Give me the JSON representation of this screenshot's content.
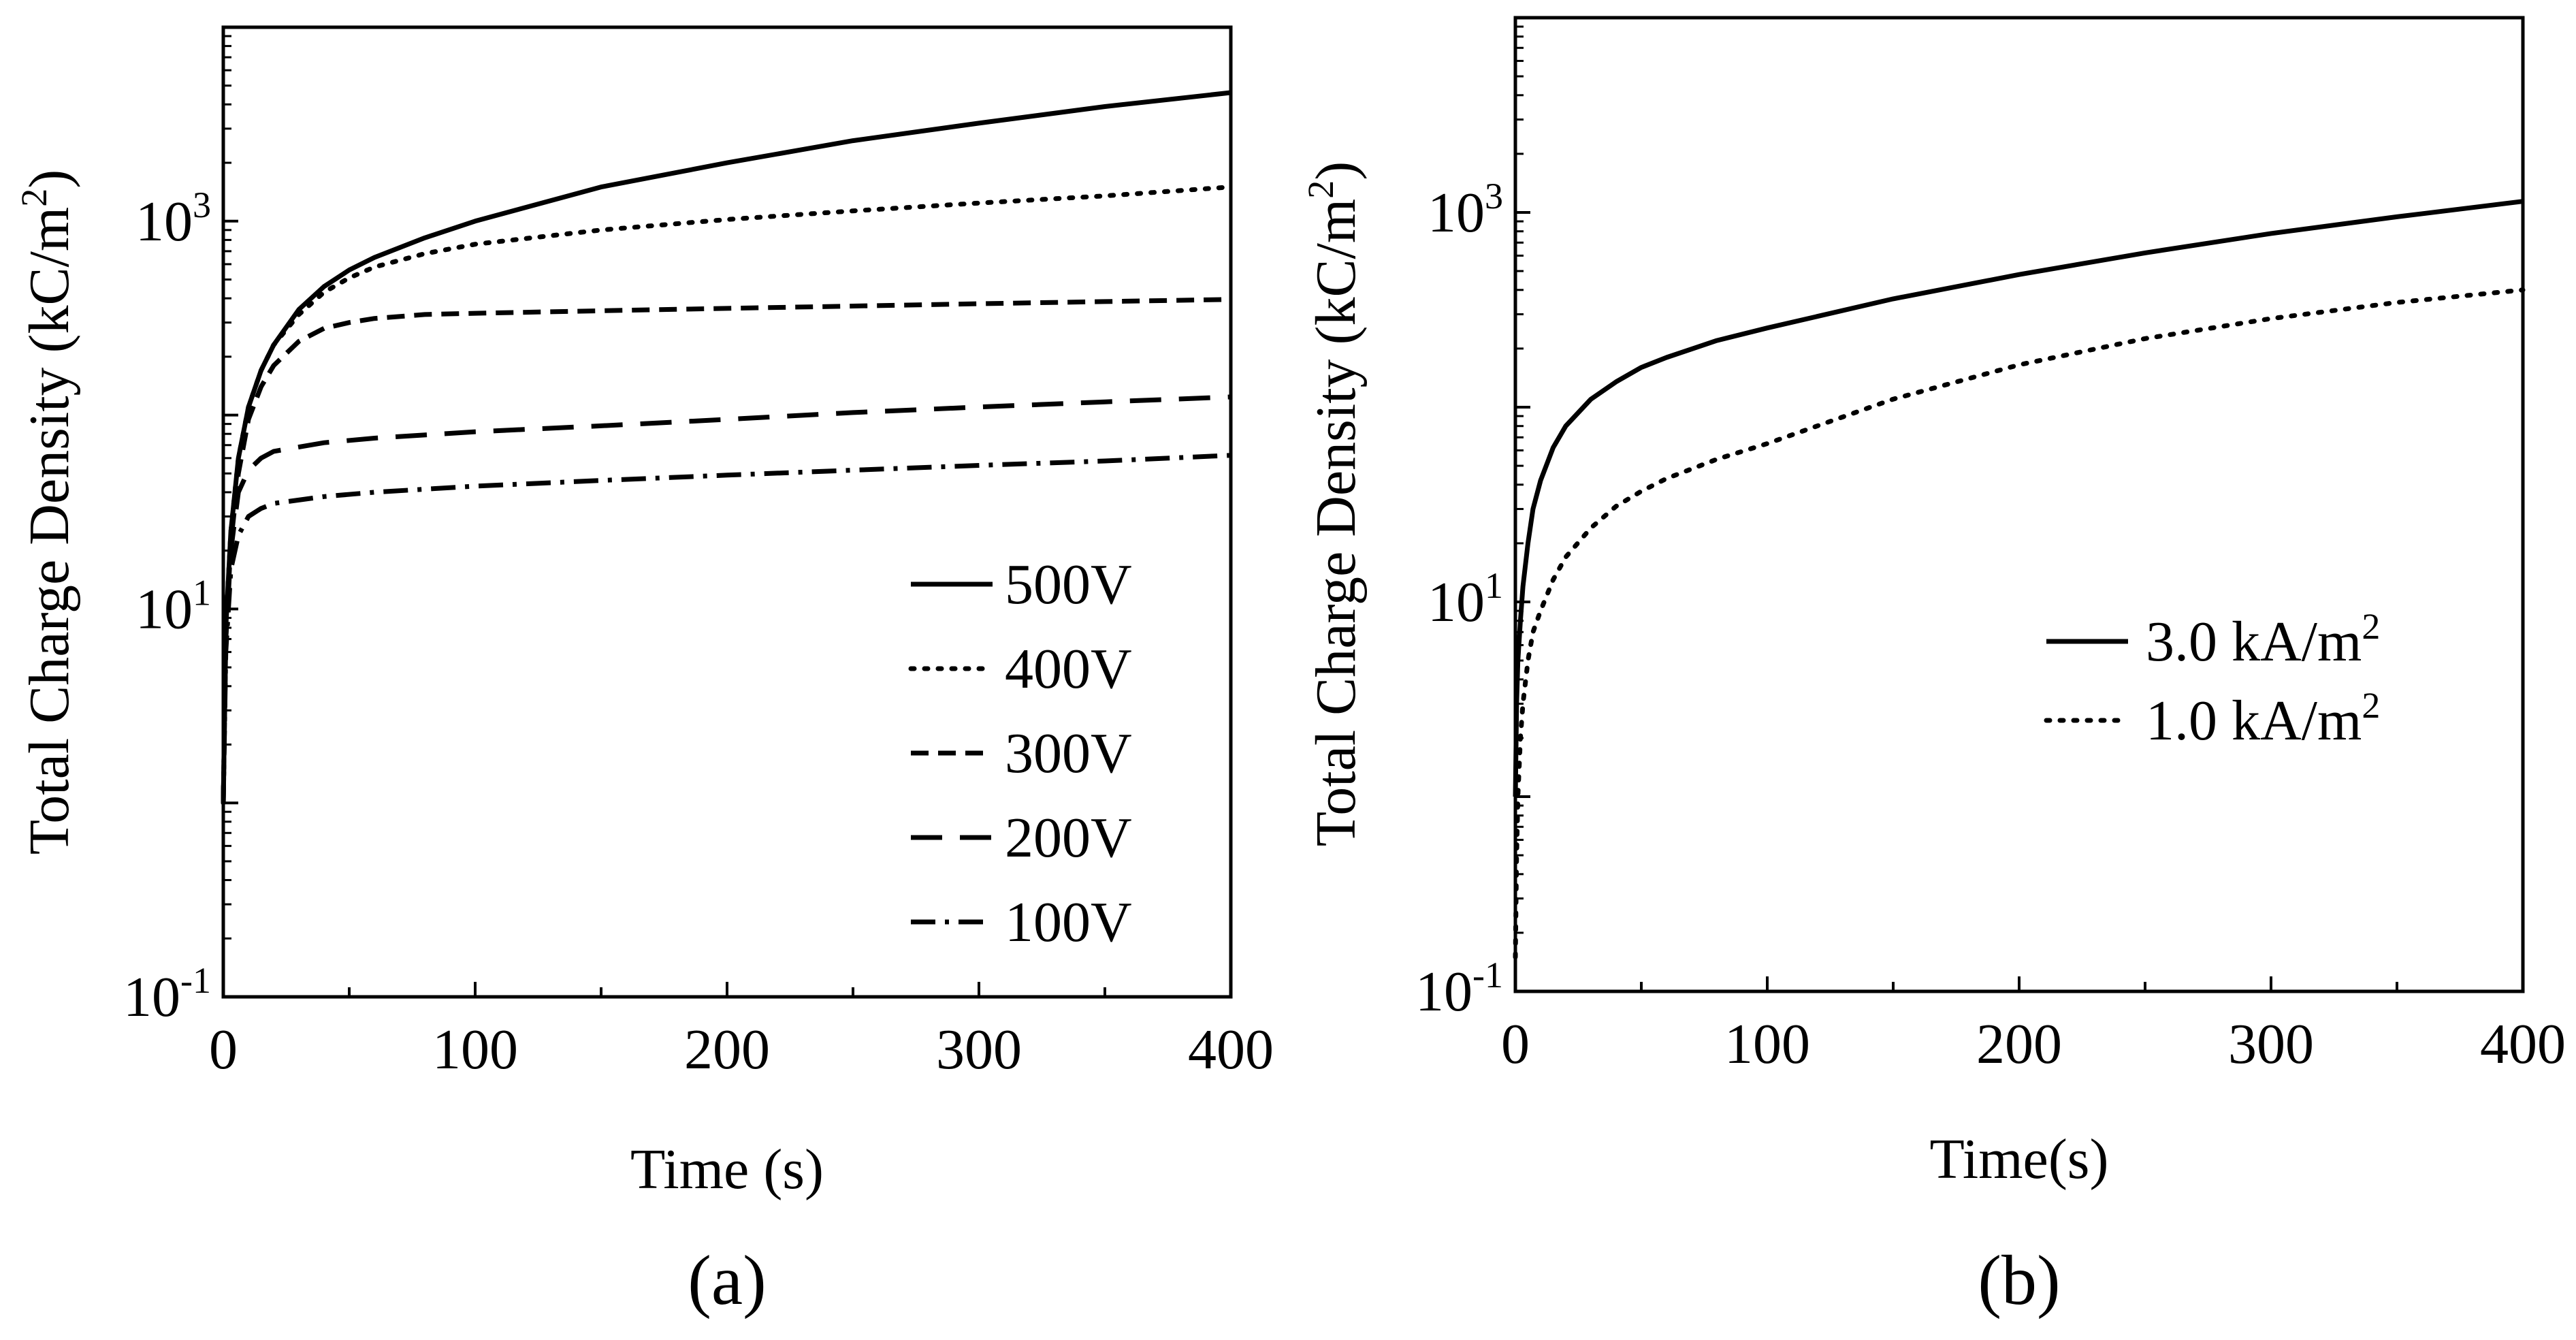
{
  "chart_data": [
    {
      "type": "line",
      "panel_label": "(a)",
      "xlabel": "Time (s)",
      "ylabel": "Total Charge Density (kC/m²)",
      "ylabel_parts": {
        "pre": "Total Charge Density (kC/m",
        "sup": "2",
        "post": ")"
      },
      "xlim": [
        0,
        400
      ],
      "xticks": [
        "0",
        "100",
        "200",
        "300",
        "400"
      ],
      "yscale": "log",
      "ylim": [
        0.1,
        10000
      ],
      "yticks": [
        {
          "base": "10",
          "exp": "-1"
        },
        {
          "base": "10",
          "exp": "1"
        },
        {
          "base": "10",
          "exp": "3"
        }
      ],
      "legend_position": "lower-right",
      "series": [
        {
          "name": "500V",
          "dash": "solid",
          "x": [
            0,
            1,
            3,
            6,
            10,
            15,
            20,
            30,
            40,
            50,
            60,
            80,
            100,
            150,
            200,
            250,
            300,
            350,
            400
          ],
          "y": [
            1,
            8,
            25,
            60,
            110,
            170,
            230,
            350,
            460,
            560,
            650,
            820,
            1000,
            1500,
            2000,
            2600,
            3200,
            3900,
            4600
          ]
        },
        {
          "name": "400V",
          "dash": "dot",
          "x": [
            0,
            1,
            3,
            6,
            10,
            15,
            20,
            30,
            40,
            50,
            60,
            80,
            100,
            150,
            200,
            250,
            300,
            350,
            400
          ],
          "y": [
            1,
            8,
            25,
            60,
            110,
            170,
            230,
            330,
            430,
            510,
            580,
            680,
            760,
            900,
            1020,
            1130,
            1240,
            1350,
            1500
          ]
        },
        {
          "name": "300V",
          "dash": "short-dash",
          "x": [
            0,
            1,
            3,
            6,
            10,
            15,
            20,
            30,
            40,
            50,
            60,
            80,
            100,
            150,
            200,
            250,
            300,
            350,
            400
          ],
          "y": [
            1,
            7,
            22,
            50,
            95,
            140,
            180,
            240,
            280,
            300,
            315,
            330,
            335,
            345,
            355,
            365,
            375,
            385,
            395
          ]
        },
        {
          "name": "200V",
          "dash": "long-dash",
          "x": [
            0,
            1,
            3,
            6,
            10,
            15,
            20,
            40,
            60,
            100,
            150,
            200,
            250,
            300,
            350,
            400
          ],
          "y": [
            1,
            7,
            20,
            40,
            52,
            60,
            65,
            72,
            76,
            82,
            88,
            95,
            103,
            110,
            117,
            124
          ]
        },
        {
          "name": "100V",
          "dash": "dash-dot",
          "x": [
            0,
            1,
            3,
            6,
            10,
            15,
            20,
            40,
            60,
            100,
            150,
            200,
            250,
            300,
            350,
            400
          ],
          "y": [
            1,
            6,
            16,
            24,
            30,
            33,
            35,
            38,
            40,
            43,
            46,
            49,
            52,
            55,
            58,
            62
          ]
        }
      ]
    },
    {
      "type": "line",
      "panel_label": "(b)",
      "xlabel": "Time(s)",
      "ylabel": "Total Charge Density (kC/m²)",
      "ylabel_parts": {
        "pre": "Total Charge Density (kC/m",
        "sup": "2",
        "post": ")"
      },
      "xlim": [
        0,
        400
      ],
      "xticks": [
        "0",
        "100",
        "200",
        "300",
        "400"
      ],
      "yscale": "log",
      "ylim": [
        0.1,
        10000
      ],
      "yticks": [
        {
          "base": "10",
          "exp": "-1"
        },
        {
          "base": "10",
          "exp": "1"
        },
        {
          "base": "10",
          "exp": "3"
        }
      ],
      "legend_position": "center-right",
      "series": [
        {
          "name": "3.0 kA/m²",
          "name_parts": {
            "pre": "3.0 kA/m",
            "sup": "2"
          },
          "dash": "solid",
          "x": [
            0,
            0.5,
            1,
            2,
            3,
            5,
            7,
            10,
            15,
            20,
            30,
            40,
            50,
            60,
            80,
            100,
            150,
            200,
            250,
            300,
            350,
            400
          ],
          "y": [
            1,
            3,
            5,
            8,
            12,
            20,
            30,
            42,
            62,
            80,
            110,
            135,
            160,
            180,
            220,
            255,
            360,
            480,
            620,
            780,
            950,
            1140
          ]
        },
        {
          "name": "1.0 kA/m²",
          "name_parts": {
            "pre": "1.0 kA/m",
            "sup": "2"
          },
          "dash": "dot",
          "x": [
            0,
            0.5,
            1,
            2,
            3,
            5,
            7,
            10,
            15,
            20,
            30,
            40,
            50,
            60,
            80,
            100,
            150,
            200,
            250,
            300,
            350,
            400
          ],
          "y": [
            0.15,
            0.5,
            1,
            2,
            3,
            5,
            7,
            9,
            13,
            17,
            24,
            31,
            37,
            43,
            54,
            65,
            110,
            165,
            225,
            285,
            345,
            400
          ]
        }
      ]
    }
  ]
}
